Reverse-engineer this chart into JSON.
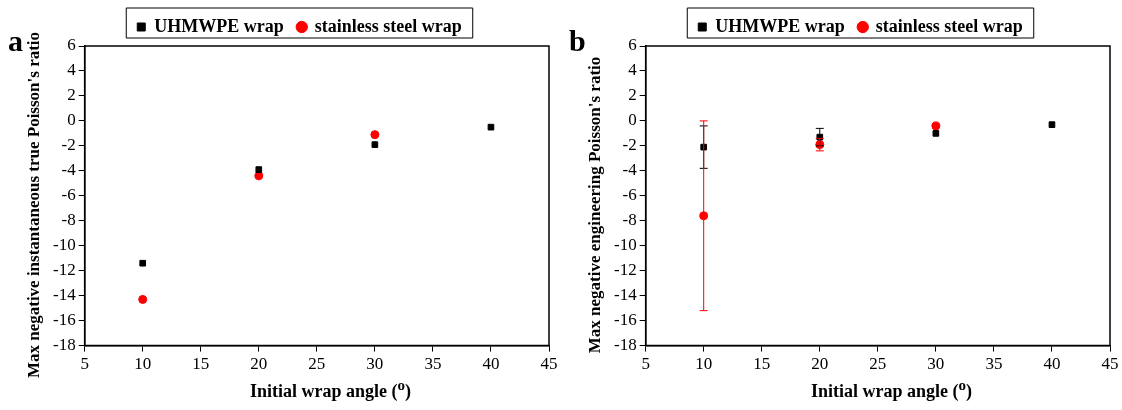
{
  "chart_data": [
    {
      "type": "scatter",
      "title": "a",
      "xlabel": "Initial wrap angle ($^{o}$)",
      "ylabel": "Max negative instantaneous true Poisson's ratio",
      "legend": "top",
      "grid": false,
      "xlim": [
        5,
        45
      ],
      "xticks": [
        5,
        10,
        15,
        20,
        25,
        30,
        35,
        40,
        45
      ],
      "ylim": [
        -18,
        6
      ],
      "yticks": [
        -18,
        -16,
        -14,
        -12,
        -10,
        -8,
        -6,
        -4,
        -2,
        0,
        2,
        4,
        6
      ],
      "series": [
        {
          "name": "UHMWPE wrap",
          "color": "#000000",
          "marker": "square",
          "x": [
            10,
            20,
            30,
            40
          ],
          "values": [
            -11.4,
            -3.9,
            -1.9,
            -0.5
          ]
        },
        {
          "name": "stainless steel wrap",
          "color": "#ff0000",
          "marker": "circle",
          "x": [
            10,
            20,
            30
          ],
          "values": [
            -14.3,
            -4.4,
            -1.1
          ]
        }
      ]
    },
    {
      "type": "scatter",
      "title": "b",
      "xlabel": "Initial wrap angle ($^{o}$)",
      "ylabel": "Max negative engineering Poisson's ratio",
      "legend": "top",
      "grid": false,
      "xlim": [
        5,
        45
      ],
      "xticks": [
        5,
        10,
        15,
        20,
        25,
        30,
        35,
        40,
        45
      ],
      "ylim": [
        -18,
        6
      ],
      "yticks": [
        -18,
        -16,
        -14,
        -12,
        -10,
        -8,
        -6,
        -4,
        -2,
        0,
        2,
        4,
        6
      ],
      "series": [
        {
          "name": "UHMWPE wrap",
          "color": "#000000",
          "marker": "square",
          "x": [
            10,
            20,
            30,
            40
          ],
          "values": [
            -2.1,
            -1.3,
            -1.0,
            -0.3
          ],
          "errors": [
            1.7,
            0.7,
            null,
            null
          ]
        },
        {
          "name": "stainless steel wrap",
          "color": "#ff0000",
          "marker": "circle",
          "x": [
            10,
            20,
            30
          ],
          "values": [
            -7.6,
            -1.9,
            -0.4
          ],
          "errors": [
            7.6,
            0.5,
            null
          ]
        }
      ]
    }
  ]
}
